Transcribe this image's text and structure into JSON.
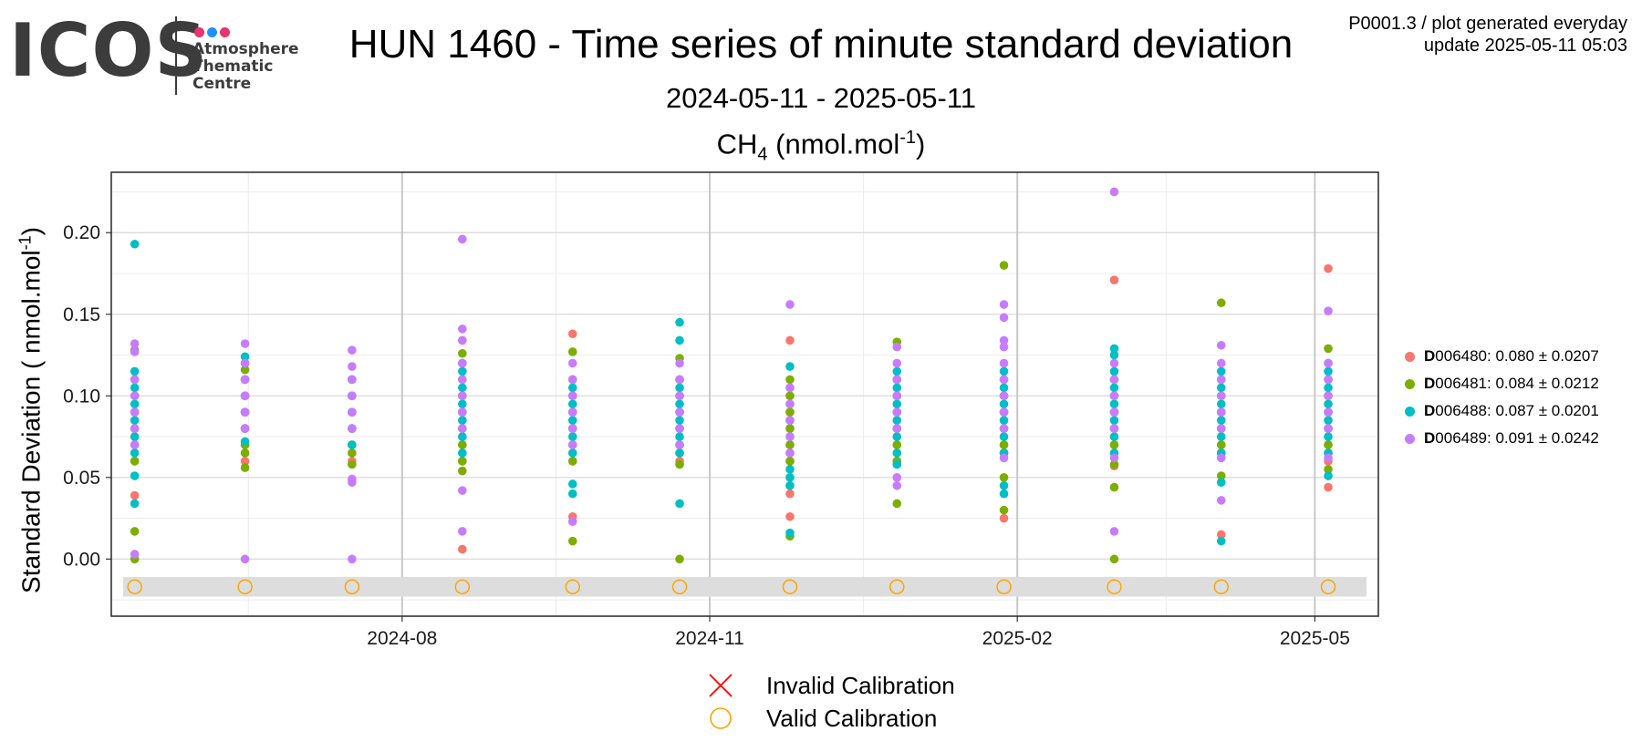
{
  "logo": {
    "text": "ICOS",
    "subtitle_lines": [
      "Atmosphere",
      "Thematic",
      "Centre"
    ],
    "dot_colors": [
      "#e8336d",
      "#1e90ff",
      "#e8336d"
    ]
  },
  "header": {
    "title": "HUN 1460 - Time series of minute standard deviation",
    "subtitle": "2024-05-11 - 2025-05-11",
    "species": "CH",
    "species_sub": "4",
    "species_unit": "(nmol.mol",
    "species_unit_sup": "-1",
    "species_unit_close": ")",
    "meta_line1": "P0001.3 / plot generated everyday",
    "meta_line2": "update  2025-05-11 05:03"
  },
  "chart_data": {
    "type": "scatter",
    "ylabel": "Standard Deviation ( nmol.mol",
    "ylabel_sup": "-1",
    "ylabel_close": ")",
    "xlim": [
      "2024-05-06",
      "2025-05-20"
    ],
    "ylim": [
      -0.035,
      0.237
    ],
    "xticks": [
      {
        "date": "2024-08-01",
        "label": "2024-08"
      },
      {
        "date": "2024-11-01",
        "label": "2024-11"
      },
      {
        "date": "2025-02-01",
        "label": "2025-02"
      },
      {
        "date": "2025-05-01",
        "label": "2025-05"
      }
    ],
    "yticks": [
      {
        "value": 0.0,
        "label": "0.00"
      },
      {
        "value": 0.05,
        "label": "0.05"
      },
      {
        "value": 0.1,
        "label": "0.10"
      },
      {
        "value": 0.15,
        "label": "0.15"
      },
      {
        "value": 0.2,
        "label": "0.20"
      }
    ],
    "grid": true,
    "calibration_band": {
      "ymin": -0.023,
      "ymax": -0.011
    },
    "calibrations": [
      {
        "date": "2024-05-13",
        "status": "valid"
      },
      {
        "date": "2024-06-15",
        "status": "valid"
      },
      {
        "date": "2024-07-17",
        "status": "valid"
      },
      {
        "date": "2024-08-19",
        "status": "valid"
      },
      {
        "date": "2024-09-21",
        "status": "valid"
      },
      {
        "date": "2024-10-23",
        "status": "valid"
      },
      {
        "date": "2024-11-25",
        "status": "valid"
      },
      {
        "date": "2024-12-27",
        "status": "valid"
      },
      {
        "date": "2025-01-28",
        "status": "valid"
      },
      {
        "date": "2025-03-02",
        "status": "valid"
      },
      {
        "date": "2025-04-03",
        "status": "valid"
      },
      {
        "date": "2025-05-05",
        "status": "valid"
      }
    ],
    "series": [
      {
        "name": "006480",
        "color": "#F8766D",
        "stats": ": 0.080 ± 0.0207",
        "points": [
          [
            "2024-05-13",
            [
              0.039,
              0.06,
              0.07,
              0.08,
              0.09,
              0.1,
              0.11
            ]
          ],
          [
            "2024-06-15",
            [
              0.06,
              0.07,
              0.08,
              0.09,
              0.1,
              0.11
            ]
          ],
          [
            "2024-07-17",
            [
              0.06,
              0.07,
              0.08,
              0.09,
              0.1,
              0.11
            ]
          ],
          [
            "2024-08-19",
            [
              0.006,
              0.06,
              0.07,
              0.08,
              0.09,
              0.1,
              0.134
            ]
          ],
          [
            "2024-09-21",
            [
              0.026,
              0.06,
              0.07,
              0.08,
              0.09,
              0.1,
              0.11,
              0.138
            ]
          ],
          [
            "2024-10-23",
            [
              0.06,
              0.07,
              0.08,
              0.09,
              0.1,
              0.11
            ]
          ],
          [
            "2024-11-25",
            [
              0.026,
              0.04,
              0.06,
              0.07,
              0.08,
              0.09,
              0.1,
              0.134
            ]
          ],
          [
            "2024-12-27",
            [
              0.06,
              0.07,
              0.08,
              0.09,
              0.1,
              0.11
            ]
          ],
          [
            "2025-01-28",
            [
              0.025,
              0.065,
              0.07,
              0.08,
              0.09,
              0.1,
              0.11
            ]
          ],
          [
            "2025-03-02",
            [
              0.057,
              0.07,
              0.08,
              0.09,
              0.1,
              0.11,
              0.171
            ]
          ],
          [
            "2025-04-03",
            [
              0.015,
              0.065,
              0.07,
              0.08,
              0.09,
              0.1,
              0.11
            ]
          ],
          [
            "2025-05-05",
            [
              0.044,
              0.06,
              0.07,
              0.08,
              0.09,
              0.1,
              0.11,
              0.178
            ]
          ]
        ]
      },
      {
        "name": "006481",
        "color": "#7CAE00",
        "stats": ": 0.084 ± 0.0212",
        "points": [
          [
            "2024-05-13",
            [
              0.0,
              0.017,
              0.06,
              0.07,
              0.08,
              0.09,
              0.1,
              0.11,
              0.128
            ]
          ],
          [
            "2024-06-15",
            [
              0.056,
              0.065,
              0.07,
              0.08,
              0.09,
              0.1,
              0.11,
              0.116
            ]
          ],
          [
            "2024-07-17",
            [
              0.058,
              0.065,
              0.07,
              0.08,
              0.09,
              0.1,
              0.11
            ]
          ],
          [
            "2024-08-19",
            [
              0.054,
              0.06,
              0.07,
              0.08,
              0.09,
              0.1,
              0.11,
              0.126
            ]
          ],
          [
            "2024-09-21",
            [
              0.011,
              0.06,
              0.07,
              0.08,
              0.09,
              0.1,
              0.11,
              0.127
            ]
          ],
          [
            "2024-10-23",
            [
              0.0,
              0.058,
              0.065,
              0.07,
              0.08,
              0.09,
              0.1,
              0.11,
              0.123
            ]
          ],
          [
            "2024-11-25",
            [
              0.014,
              0.045,
              0.06,
              0.07,
              0.08,
              0.09,
              0.1,
              0.11
            ]
          ],
          [
            "2024-12-27",
            [
              0.034,
              0.06,
              0.07,
              0.08,
              0.09,
              0.1,
              0.11,
              0.133
            ]
          ],
          [
            "2025-01-28",
            [
              0.03,
              0.05,
              0.065,
              0.07,
              0.08,
              0.09,
              0.1,
              0.11,
              0.18
            ]
          ],
          [
            "2025-03-02",
            [
              0.0,
              0.044,
              0.058,
              0.07,
              0.08,
              0.09,
              0.1,
              0.11
            ]
          ],
          [
            "2025-04-03",
            [
              0.051,
              0.065,
              0.07,
              0.08,
              0.09,
              0.1,
              0.11,
              0.157
            ]
          ],
          [
            "2025-05-05",
            [
              0.055,
              0.065,
              0.07,
              0.08,
              0.09,
              0.1,
              0.11,
              0.129
            ]
          ]
        ]
      },
      {
        "name": "006488",
        "color": "#00BFC4",
        "stats": ": 0.087 ± 0.0201",
        "points": [
          [
            "2024-05-13",
            [
              0.034,
              0.051,
              0.065,
              0.075,
              0.085,
              0.095,
              0.105,
              0.115,
              0.193
            ]
          ],
          [
            "2024-06-15",
            [
              0.072,
              0.08,
              0.09,
              0.1,
              0.11,
              0.12,
              0.124
            ]
          ],
          [
            "2024-07-17",
            [
              0.07,
              0.08,
              0.09,
              0.1,
              0.11
            ]
          ],
          [
            "2024-08-19",
            [
              0.065,
              0.075,
              0.085,
              0.095,
              0.105,
              0.115,
              0.12
            ]
          ],
          [
            "2024-09-21",
            [
              0.04,
              0.046,
              0.065,
              0.075,
              0.085,
              0.095,
              0.105
            ]
          ],
          [
            "2024-10-23",
            [
              0.034,
              0.065,
              0.075,
              0.085,
              0.095,
              0.105,
              0.134,
              0.145
            ]
          ],
          [
            "2024-11-25",
            [
              0.016,
              0.045,
              0.05,
              0.055,
              0.065,
              0.075,
              0.085,
              0.095,
              0.105,
              0.118
            ]
          ],
          [
            "2024-12-27",
            [
              0.058,
              0.065,
              0.075,
              0.085,
              0.095,
              0.105,
              0.115
            ]
          ],
          [
            "2025-01-28",
            [
              0.04,
              0.045,
              0.065,
              0.075,
              0.085,
              0.095,
              0.105,
              0.115
            ]
          ],
          [
            "2025-03-02",
            [
              0.065,
              0.075,
              0.085,
              0.095,
              0.105,
              0.115,
              0.125,
              0.129
            ]
          ],
          [
            "2025-04-03",
            [
              0.011,
              0.047,
              0.065,
              0.075,
              0.085,
              0.095,
              0.105,
              0.115
            ]
          ],
          [
            "2025-05-05",
            [
              0.051,
              0.065,
              0.075,
              0.085,
              0.095,
              0.105,
              0.115,
              0.12
            ]
          ]
        ]
      },
      {
        "name": "006489",
        "color": "#C77CFF",
        "stats": ": 0.091 ± 0.0242",
        "points": [
          [
            "2024-05-13",
            [
              0.003,
              0.07,
              0.08,
              0.09,
              0.1,
              0.11,
              0.127,
              0.132
            ]
          ],
          [
            "2024-06-15",
            [
              0.0,
              0.08,
              0.09,
              0.1,
              0.11,
              0.12,
              0.132
            ]
          ],
          [
            "2024-07-17",
            [
              0.0,
              0.047,
              0.049,
              0.08,
              0.09,
              0.1,
              0.11,
              0.118,
              0.128
            ]
          ],
          [
            "2024-08-19",
            [
              0.017,
              0.042,
              0.08,
              0.09,
              0.1,
              0.11,
              0.12,
              0.134,
              0.141,
              0.196
            ]
          ],
          [
            "2024-09-21",
            [
              0.023,
              0.07,
              0.08,
              0.09,
              0.1,
              0.11,
              0.12
            ]
          ],
          [
            "2024-10-23",
            [
              0.07,
              0.08,
              0.09,
              0.1,
              0.11,
              0.12
            ]
          ],
          [
            "2024-11-25",
            [
              0.065,
              0.075,
              0.085,
              0.095,
              0.105,
              0.156
            ]
          ],
          [
            "2024-12-27",
            [
              0.045,
              0.05,
              0.08,
              0.09,
              0.1,
              0.11,
              0.12,
              0.13
            ]
          ],
          [
            "2025-01-28",
            [
              0.062,
              0.08,
              0.09,
              0.1,
              0.11,
              0.12,
              0.13,
              0.134,
              0.148,
              0.156
            ]
          ],
          [
            "2025-03-02",
            [
              0.017,
              0.062,
              0.08,
              0.09,
              0.1,
              0.11,
              0.12,
              0.225
            ]
          ],
          [
            "2025-04-03",
            [
              0.036,
              0.062,
              0.08,
              0.09,
              0.1,
              0.11,
              0.12,
              0.131
            ]
          ],
          [
            "2025-05-05",
            [
              0.062,
              0.08,
              0.09,
              0.1,
              0.11,
              0.12,
              0.152
            ]
          ]
        ]
      }
    ]
  },
  "legend": {
    "prefix": "D",
    "items": [
      "006480",
      "006481",
      "006488",
      "006489"
    ]
  },
  "calibration_legend": {
    "invalid_label": "Invalid Calibration",
    "valid_label": "Valid Calibration",
    "invalid_color": "#ff0000",
    "valid_color": "#ffa500"
  }
}
